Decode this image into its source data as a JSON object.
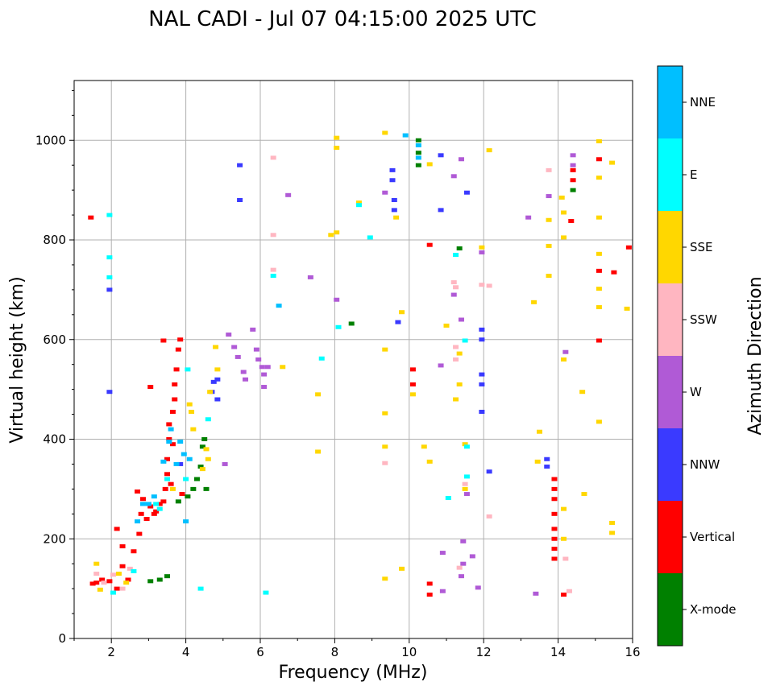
{
  "chart_data": {
    "type": "scatter",
    "title": "NAL CADI - Jul 07 04:15:00 2025 UTC",
    "xlabel": "Frequency (MHz)",
    "ylabel": "Virtual height (km)",
    "xlim": [
      1,
      16
    ],
    "ylim": [
      0,
      1120
    ],
    "xticks": [
      "2",
      "4",
      "6",
      "8",
      "10",
      "12",
      "14",
      "16"
    ],
    "yticks": [
      "0",
      "200",
      "400",
      "600",
      "800",
      "1000"
    ],
    "grid": true,
    "colorbar": {
      "label": "Azimuth Direction",
      "categories": [
        {
          "label": "X-mode",
          "color": "#008000"
        },
        {
          "label": "Vertical",
          "color": "#ff0000"
        },
        {
          "label": "NNW",
          "color": "#3a3aff"
        },
        {
          "label": "W",
          "color": "#b05ad6"
        },
        {
          "label": "SSW",
          "color": "#ffb6c1"
        },
        {
          "label": "SSE",
          "color": "#ffd700"
        },
        {
          "label": "E",
          "color": "#00ffff"
        },
        {
          "label": "NNE",
          "color": "#00bfff"
        }
      ]
    },
    "series": [
      {
        "name": "Vertical",
        "points": [
          [
            1.45,
            845
          ],
          [
            1.5,
            110
          ],
          [
            1.6,
            112
          ],
          [
            1.75,
            118
          ],
          [
            1.95,
            115
          ],
          [
            2.15,
            100
          ],
          [
            2.15,
            220
          ],
          [
            2.3,
            185
          ],
          [
            2.3,
            145
          ],
          [
            2.45,
            118
          ],
          [
            2.6,
            175
          ],
          [
            2.7,
            295
          ],
          [
            2.75,
            210
          ],
          [
            2.8,
            250
          ],
          [
            2.85,
            280
          ],
          [
            2.95,
            240
          ],
          [
            3.05,
            265
          ],
          [
            3.15,
            250
          ],
          [
            3.2,
            255
          ],
          [
            3.3,
            270
          ],
          [
            3.4,
            275
          ],
          [
            3.45,
            300
          ],
          [
            3.5,
            330
          ],
          [
            3.5,
            360
          ],
          [
            3.55,
            400
          ],
          [
            3.55,
            430
          ],
          [
            3.6,
            310
          ],
          [
            3.65,
            390
          ],
          [
            3.65,
            455
          ],
          [
            3.7,
            480
          ],
          [
            3.7,
            510
          ],
          [
            3.75,
            540
          ],
          [
            3.8,
            580
          ],
          [
            3.85,
            600
          ],
          [
            3.9,
            290
          ],
          [
            3.4,
            598
          ],
          [
            3.05,
            505
          ],
          [
            10.1,
            540
          ],
          [
            10.1,
            510
          ],
          [
            10.55,
            110
          ],
          [
            10.55,
            88
          ],
          [
            10.55,
            790
          ],
          [
            13.9,
            280
          ],
          [
            13.9,
            250
          ],
          [
            13.9,
            220
          ],
          [
            13.9,
            200
          ],
          [
            13.9,
            180
          ],
          [
            13.9,
            160
          ],
          [
            13.9,
            320
          ],
          [
            13.9,
            300
          ],
          [
            14.15,
            88
          ],
          [
            14.4,
            940
          ],
          [
            14.4,
            920
          ],
          [
            14.35,
            838
          ],
          [
            15.1,
            962
          ],
          [
            15.1,
            738
          ],
          [
            15.1,
            598
          ],
          [
            15.5,
            735
          ],
          [
            15.9,
            785
          ]
        ]
      },
      {
        "name": "X-mode",
        "points": [
          [
            3.05,
            115
          ],
          [
            3.3,
            118
          ],
          [
            3.5,
            125
          ],
          [
            3.8,
            275
          ],
          [
            4.05,
            285
          ],
          [
            4.2,
            300
          ],
          [
            4.3,
            320
          ],
          [
            4.4,
            345
          ],
          [
            4.45,
            385
          ],
          [
            4.5,
            400
          ],
          [
            4.55,
            300
          ],
          [
            10.25,
            1000
          ],
          [
            10.25,
            975
          ],
          [
            10.25,
            950
          ],
          [
            8.45,
            632
          ],
          [
            11.35,
            783
          ],
          [
            14.4,
            900
          ]
        ]
      },
      {
        "name": "NNW",
        "points": [
          [
            1.95,
            700
          ],
          [
            1.95,
            495
          ],
          [
            3.85,
            350
          ],
          [
            4.7,
            495
          ],
          [
            4.75,
            515
          ],
          [
            4.85,
            480
          ],
          [
            4.85,
            520
          ],
          [
            5.45,
            950
          ],
          [
            5.45,
            880
          ],
          [
            9.55,
            940
          ],
          [
            9.55,
            920
          ],
          [
            9.6,
            880
          ],
          [
            9.6,
            860
          ],
          [
            9.7,
            635
          ],
          [
            10.85,
            970
          ],
          [
            10.85,
            860
          ],
          [
            11.55,
            895
          ],
          [
            11.95,
            620
          ],
          [
            11.95,
            600
          ],
          [
            11.95,
            530
          ],
          [
            11.95,
            510
          ],
          [
            11.95,
            455
          ],
          [
            12.15,
            335
          ],
          [
            13.7,
            360
          ],
          [
            13.7,
            345
          ]
        ]
      },
      {
        "name": "W",
        "points": [
          [
            5.05,
            350
          ],
          [
            5.15,
            610
          ],
          [
            5.3,
            585
          ],
          [
            5.4,
            565
          ],
          [
            5.55,
            535
          ],
          [
            5.6,
            520
          ],
          [
            5.8,
            620
          ],
          [
            5.9,
            580
          ],
          [
            5.95,
            560
          ],
          [
            6.05,
            545
          ],
          [
            6.1,
            530
          ],
          [
            6.2,
            545
          ],
          [
            6.1,
            505
          ],
          [
            6.75,
            890
          ],
          [
            7.35,
            725
          ],
          [
            8.05,
            680
          ],
          [
            9.35,
            895
          ],
          [
            10.85,
            548
          ],
          [
            10.9,
            172
          ],
          [
            10.9,
            95
          ],
          [
            11.2,
            928
          ],
          [
            11.2,
            690
          ],
          [
            11.4,
            962
          ],
          [
            11.4,
            640
          ],
          [
            11.45,
            195
          ],
          [
            11.45,
            150
          ],
          [
            11.4,
            125
          ],
          [
            11.55,
            290
          ],
          [
            11.7,
            165
          ],
          [
            11.85,
            102
          ],
          [
            11.95,
            775
          ],
          [
            13.2,
            845
          ],
          [
            13.4,
            90
          ],
          [
            13.75,
            888
          ],
          [
            14.2,
            575
          ],
          [
            14.4,
            970
          ],
          [
            14.4,
            950
          ]
        ]
      },
      {
        "name": "SSW",
        "points": [
          [
            1.6,
            130
          ],
          [
            1.8,
            112
          ],
          [
            2.05,
            128
          ],
          [
            2.3,
            100
          ],
          [
            2.5,
            140
          ],
          [
            6.35,
            965
          ],
          [
            6.35,
            740
          ],
          [
            6.35,
            810
          ],
          [
            9.35,
            352
          ],
          [
            11.2,
            715
          ],
          [
            11.25,
            705
          ],
          [
            11.25,
            585
          ],
          [
            11.25,
            560
          ],
          [
            11.35,
            142
          ],
          [
            11.5,
            310
          ],
          [
            11.95,
            710
          ],
          [
            12.15,
            708
          ],
          [
            12.15,
            245
          ],
          [
            13.75,
            940
          ],
          [
            14.2,
            160
          ],
          [
            14.3,
            95
          ]
        ]
      },
      {
        "name": "SSE",
        "points": [
          [
            1.6,
            150
          ],
          [
            1.7,
            98
          ],
          [
            2.2,
            130
          ],
          [
            2.4,
            112
          ],
          [
            3.65,
            300
          ],
          [
            4.1,
            470
          ],
          [
            4.15,
            455
          ],
          [
            4.2,
            420
          ],
          [
            4.45,
            340
          ],
          [
            4.55,
            380
          ],
          [
            4.6,
            360
          ],
          [
            4.65,
            495
          ],
          [
            4.8,
            585
          ],
          [
            4.85,
            540
          ],
          [
            6.6,
            545
          ],
          [
            7.55,
            490
          ],
          [
            7.55,
            375
          ],
          [
            7.9,
            810
          ],
          [
            8.05,
            985
          ],
          [
            8.05,
            815
          ],
          [
            8.05,
            1005
          ],
          [
            8.65,
            875
          ],
          [
            9.35,
            1015
          ],
          [
            9.35,
            580
          ],
          [
            9.35,
            452
          ],
          [
            9.35,
            385
          ],
          [
            9.35,
            120
          ],
          [
            9.65,
            845
          ],
          [
            9.8,
            655
          ],
          [
            9.8,
            140
          ],
          [
            10.1,
            490
          ],
          [
            10.4,
            385
          ],
          [
            10.55,
            355
          ],
          [
            10.55,
            952
          ],
          [
            11.0,
            628
          ],
          [
            11.25,
            480
          ],
          [
            11.35,
            572
          ],
          [
            11.35,
            510
          ],
          [
            11.5,
            390
          ],
          [
            11.5,
            300
          ],
          [
            11.95,
            785
          ],
          [
            12.15,
            980
          ],
          [
            13.35,
            675
          ],
          [
            13.5,
            415
          ],
          [
            13.45,
            355
          ],
          [
            13.75,
            840
          ],
          [
            13.75,
            788
          ],
          [
            13.75,
            728
          ],
          [
            14.1,
            885
          ],
          [
            14.15,
            855
          ],
          [
            14.15,
            805
          ],
          [
            14.15,
            560
          ],
          [
            14.15,
            260
          ],
          [
            14.15,
            200
          ],
          [
            14.65,
            495
          ],
          [
            14.7,
            290
          ],
          [
            15.1,
            998
          ],
          [
            15.1,
            925
          ],
          [
            15.1,
            845
          ],
          [
            15.1,
            772
          ],
          [
            15.1,
            702
          ],
          [
            15.1,
            665
          ],
          [
            15.1,
            435
          ],
          [
            15.45,
            955
          ],
          [
            15.45,
            232
          ],
          [
            15.45,
            212
          ],
          [
            15.85,
            662
          ]
        ]
      },
      {
        "name": "E",
        "points": [
          [
            1.95,
            850
          ],
          [
            1.95,
            765
          ],
          [
            1.95,
            725
          ],
          [
            2.05,
            92
          ],
          [
            2.6,
            135
          ],
          [
            3.2,
            270
          ],
          [
            3.3,
            260
          ],
          [
            3.5,
            320
          ],
          [
            4.0,
            320
          ],
          [
            4.05,
            540
          ],
          [
            4.4,
            100
          ],
          [
            4.6,
            440
          ],
          [
            6.15,
            92
          ],
          [
            6.35,
            728
          ],
          [
            7.65,
            562
          ],
          [
            8.1,
            625
          ],
          [
            8.65,
            870
          ],
          [
            8.95,
            805
          ],
          [
            11.05,
            282
          ],
          [
            11.25,
            770
          ],
          [
            11.5,
            598
          ],
          [
            11.55,
            385
          ],
          [
            11.55,
            325
          ]
        ]
      },
      {
        "name": "NNE",
        "points": [
          [
            2.7,
            235
          ],
          [
            2.85,
            270
          ],
          [
            3.0,
            270
          ],
          [
            3.15,
            285
          ],
          [
            3.4,
            355
          ],
          [
            3.55,
            395
          ],
          [
            3.6,
            420
          ],
          [
            3.75,
            350
          ],
          [
            3.85,
            395
          ],
          [
            3.95,
            370
          ],
          [
            4.0,
            235
          ],
          [
            4.1,
            360
          ],
          [
            10.25,
            990
          ],
          [
            10.25,
            965
          ],
          [
            6.5,
            668
          ],
          [
            9.9,
            1010
          ]
        ]
      }
    ]
  }
}
